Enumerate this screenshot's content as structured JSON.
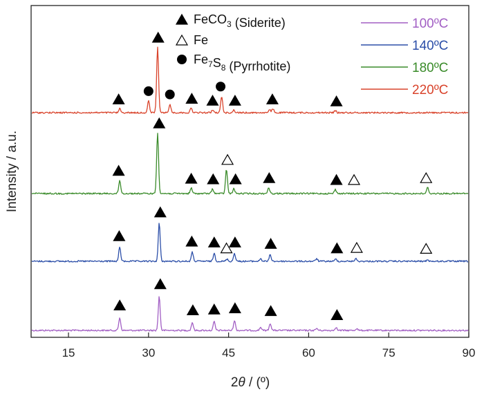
{
  "chart_data": {
    "type": "line",
    "xlabel": "2θ / (º)",
    "ylabel": "Intensity / a.u.",
    "xlim": [
      8,
      90
    ],
    "xticks": [
      "15",
      "30",
      "45",
      "60",
      "75",
      "90"
    ],
    "xtick_values": [
      15,
      30,
      45,
      60,
      75,
      90
    ],
    "yticks_shown": false,
    "phase_legend": [
      {
        "symbol": "filled-triangle",
        "label": "FeCO",
        "sub": "3",
        "suffix": " (Siderite)"
      },
      {
        "symbol": "open-triangle",
        "label": "Fe",
        "sub": "",
        "suffix": ""
      },
      {
        "symbol": "filled-circle",
        "label": "Fe",
        "sub": "7",
        "label2": "S",
        "sub2": "8",
        "suffix": " (Pyrrhotite)"
      }
    ],
    "series": [
      {
        "name": "100ºC",
        "color": "#a25fc4",
        "peaks": [
          {
            "x": 24.6,
            "h": 0.32
          },
          {
            "x": 32.0,
            "h": 0.85
          },
          {
            "x": 38.2,
            "h": 0.2
          },
          {
            "x": 42.3,
            "h": 0.22
          },
          {
            "x": 46.1,
            "h": 0.25
          },
          {
            "x": 51.0,
            "h": 0.08
          },
          {
            "x": 52.8,
            "h": 0.18
          },
          {
            "x": 61.5,
            "h": 0.05
          },
          {
            "x": 65.1,
            "h": 0.08
          },
          {
            "x": 69.0,
            "h": 0.05
          }
        ],
        "markers": [
          {
            "x": 24.6,
            "symbol": "filled-triangle"
          },
          {
            "x": 32.2,
            "symbol": "filled-triangle"
          },
          {
            "x": 38.3,
            "symbol": "filled-triangle"
          },
          {
            "x": 42.3,
            "symbol": "filled-triangle"
          },
          {
            "x": 46.2,
            "symbol": "filled-triangle"
          },
          {
            "x": 52.9,
            "symbol": "filled-triangle"
          },
          {
            "x": 65.3,
            "symbol": "filled-triangle"
          }
        ]
      },
      {
        "name": "140ºC",
        "color": "#2b4ea8",
        "peaks": [
          {
            "x": 24.6,
            "h": 0.32
          },
          {
            "x": 32.0,
            "h": 0.85
          },
          {
            "x": 38.2,
            "h": 0.2
          },
          {
            "x": 42.3,
            "h": 0.18
          },
          {
            "x": 44.7,
            "h": 0.05
          },
          {
            "x": 46.1,
            "h": 0.18
          },
          {
            "x": 51.0,
            "h": 0.06
          },
          {
            "x": 52.8,
            "h": 0.15
          },
          {
            "x": 61.5,
            "h": 0.06
          },
          {
            "x": 65.1,
            "h": 0.05
          },
          {
            "x": 68.8,
            "h": 0.06
          },
          {
            "x": 82.3,
            "h": 0.04
          }
        ],
        "markers": [
          {
            "x": 24.5,
            "symbol": "filled-triangle"
          },
          {
            "x": 32.2,
            "symbol": "filled-triangle"
          },
          {
            "x": 38.1,
            "symbol": "filled-triangle"
          },
          {
            "x": 42.3,
            "symbol": "filled-triangle"
          },
          {
            "x": 44.6,
            "symbol": "open-triangle"
          },
          {
            "x": 46.2,
            "symbol": "filled-triangle"
          },
          {
            "x": 52.9,
            "symbol": "filled-triangle"
          },
          {
            "x": 65.3,
            "symbol": "filled-triangle"
          },
          {
            "x": 69.0,
            "symbol": "open-triangle"
          },
          {
            "x": 82.0,
            "symbol": "open-triangle"
          }
        ]
      },
      {
        "name": "180ºC",
        "color": "#3a8b2a",
        "peaks": [
          {
            "x": 24.6,
            "h": 0.22
          },
          {
            "x": 31.7,
            "h": 1.0
          },
          {
            "x": 38.0,
            "h": 0.09
          },
          {
            "x": 42.0,
            "h": 0.08
          },
          {
            "x": 44.6,
            "h": 0.4
          },
          {
            "x": 46.0,
            "h": 0.08
          },
          {
            "x": 52.5,
            "h": 0.1
          },
          {
            "x": 65.0,
            "h": 0.07
          },
          {
            "x": 82.3,
            "h": 0.1
          }
        ],
        "markers": [
          {
            "x": 24.4,
            "symbol": "filled-triangle"
          },
          {
            "x": 32.0,
            "symbol": "filled-triangle"
          },
          {
            "x": 38.0,
            "symbol": "filled-triangle"
          },
          {
            "x": 42.1,
            "symbol": "filled-triangle"
          },
          {
            "x": 44.8,
            "symbol": "open-triangle"
          },
          {
            "x": 46.3,
            "symbol": "filled-triangle"
          },
          {
            "x": 52.6,
            "symbol": "filled-triangle"
          },
          {
            "x": 65.2,
            "symbol": "filled-triangle"
          },
          {
            "x": 68.5,
            "symbol": "open-triangle"
          },
          {
            "x": 82.0,
            "symbol": "open-triangle"
          }
        ]
      },
      {
        "name": "220ºC",
        "color": "#d9432b",
        "peaks": [
          {
            "x": 24.6,
            "h": 0.06
          },
          {
            "x": 30.0,
            "h": 0.18
          },
          {
            "x": 31.7,
            "h": 1.0
          },
          {
            "x": 34.0,
            "h": 0.13
          },
          {
            "x": 38.0,
            "h": 0.07
          },
          {
            "x": 42.0,
            "h": 0.04
          },
          {
            "x": 43.7,
            "h": 0.25
          },
          {
            "x": 46.0,
            "h": 0.04
          },
          {
            "x": 52.7,
            "h": 0.04
          },
          {
            "x": 53.3,
            "h": 0.06
          },
          {
            "x": 65.0,
            "h": 0.03
          }
        ],
        "markers": [
          {
            "x": 24.4,
            "symbol": "filled-triangle"
          },
          {
            "x": 30.0,
            "symbol": "filled-circle"
          },
          {
            "x": 31.8,
            "symbol": "filled-triangle"
          },
          {
            "x": 34.0,
            "symbol": "filled-circle"
          },
          {
            "x": 38.1,
            "symbol": "filled-triangle"
          },
          {
            "x": 42.0,
            "symbol": "filled-triangle"
          },
          {
            "x": 43.5,
            "symbol": "filled-circle"
          },
          {
            "x": 46.2,
            "symbol": "filled-triangle"
          },
          {
            "x": 53.2,
            "symbol": "filled-triangle"
          },
          {
            "x": 65.2,
            "symbol": "filled-triangle"
          }
        ]
      }
    ]
  }
}
